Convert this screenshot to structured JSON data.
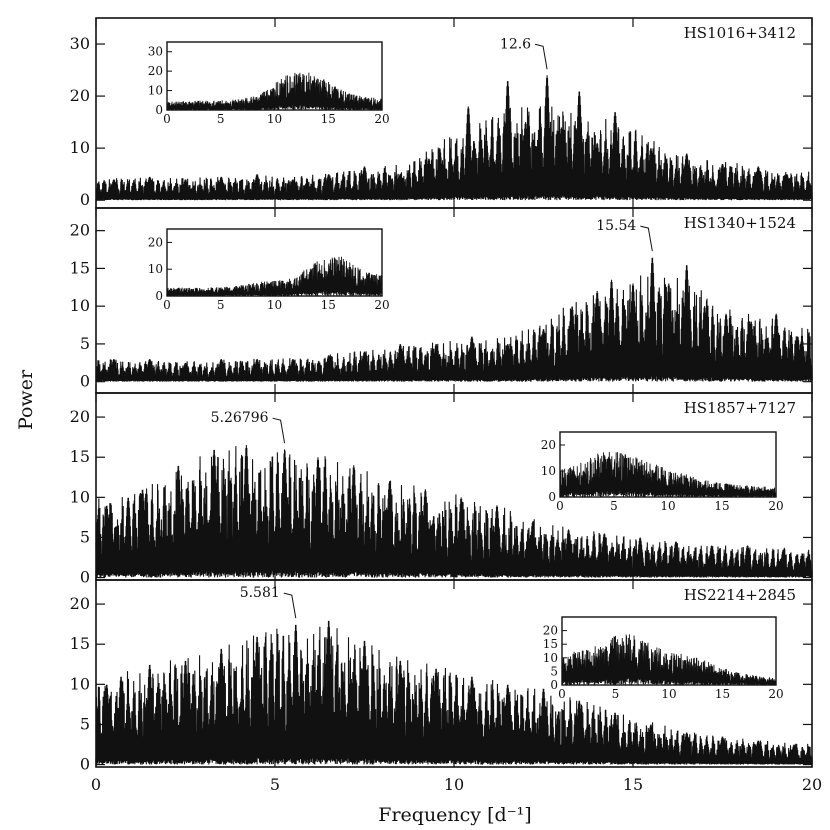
{
  "chart_data": {
    "type": "line",
    "title": "",
    "xlabel": "Frequency [d⁻¹]",
    "ylabel": "Power",
    "xlim": [
      0,
      20
    ],
    "x_ticks": [
      0,
      5,
      10,
      15,
      20
    ],
    "x_tick_labels": [
      "0",
      "5",
      "10",
      "15",
      "20"
    ],
    "grid": false,
    "panels": [
      {
        "name": "HS1016+3412",
        "ylim": [
          -1.5,
          35
        ],
        "y_ticks": [
          0,
          10,
          20,
          30
        ],
        "y_tick_labels": [
          "0",
          "10",
          "20",
          "30"
        ],
        "annotation": {
          "text": "12.6",
          "x": 12.6,
          "y": 24
        },
        "peaks": [
          {
            "x": 0.5,
            "y": 4
          },
          {
            "x": 1.5,
            "y": 4.5
          },
          {
            "x": 2.5,
            "y": 4
          },
          {
            "x": 3.5,
            "y": 4.5
          },
          {
            "x": 4.5,
            "y": 5
          },
          {
            "x": 5.5,
            "y": 4
          },
          {
            "x": 6.5,
            "y": 5
          },
          {
            "x": 7.5,
            "y": 6.5
          },
          {
            "x": 8.5,
            "y": 5
          },
          {
            "x": 9.3,
            "y": 8
          },
          {
            "x": 9.6,
            "y": 10
          },
          {
            "x": 10.4,
            "y": 18
          },
          {
            "x": 10.9,
            "y": 12
          },
          {
            "x": 11.5,
            "y": 23
          },
          {
            "x": 12.0,
            "y": 15
          },
          {
            "x": 12.6,
            "y": 24
          },
          {
            "x": 13.0,
            "y": 14
          },
          {
            "x": 13.5,
            "y": 21
          },
          {
            "x": 14.0,
            "y": 11
          },
          {
            "x": 14.5,
            "y": 17
          },
          {
            "x": 15.5,
            "y": 10
          },
          {
            "x": 16.5,
            "y": 9
          },
          {
            "x": 17.5,
            "y": 7
          },
          {
            "x": 18.5,
            "y": 6.5
          },
          {
            "x": 19.3,
            "y": 5
          }
        ],
        "inset": {
          "position": "top-left",
          "xlim": [
            0,
            20
          ],
          "ylim": [
            0,
            35
          ],
          "x_tick_labels": [
            "0",
            "5",
            "10",
            "15",
            "20"
          ],
          "y_tick_labels": [
            "0",
            "10",
            "20",
            "30"
          ]
        }
      },
      {
        "name": "HS1340+1524",
        "ylim": [
          -1.5,
          23
        ],
        "y_ticks": [
          0,
          5,
          10,
          15,
          20
        ],
        "y_tick_labels": [
          "0",
          "5",
          "10",
          "15",
          "20"
        ],
        "annotation": {
          "text": "15.54",
          "x": 15.54,
          "y": 16.5
        },
        "peaks": [
          {
            "x": 0.5,
            "y": 3
          },
          {
            "x": 1.5,
            "y": 3
          },
          {
            "x": 2.5,
            "y": 2.5
          },
          {
            "x": 3.5,
            "y": 3
          },
          {
            "x": 4.5,
            "y": 3
          },
          {
            "x": 5.5,
            "y": 3
          },
          {
            "x": 6.5,
            "y": 3.5
          },
          {
            "x": 7.5,
            "y": 4
          },
          {
            "x": 8.5,
            "y": 5
          },
          {
            "x": 9.5,
            "y": 5
          },
          {
            "x": 10.5,
            "y": 6
          },
          {
            "x": 11.5,
            "y": 5
          },
          {
            "x": 12.5,
            "y": 7
          },
          {
            "x": 13.3,
            "y": 10
          },
          {
            "x": 14.0,
            "y": 12
          },
          {
            "x": 14.4,
            "y": 13.5
          },
          {
            "x": 15.0,
            "y": 13
          },
          {
            "x": 15.54,
            "y": 16.5
          },
          {
            "x": 16.0,
            "y": 13
          },
          {
            "x": 16.5,
            "y": 15.5
          },
          {
            "x": 17.0,
            "y": 10
          },
          {
            "x": 17.6,
            "y": 9
          },
          {
            "x": 18.3,
            "y": 8
          },
          {
            "x": 19.0,
            "y": 9
          },
          {
            "x": 19.6,
            "y": 6
          }
        ],
        "inset": {
          "position": "top-left",
          "xlim": [
            0,
            20
          ],
          "ylim": [
            0,
            25
          ],
          "x_tick_labels": [
            "0",
            "5",
            "10",
            "15",
            "20"
          ],
          "y_tick_labels": [
            "0",
            "10",
            "20"
          ]
        }
      },
      {
        "name": "HS1857+7127",
        "ylim": [
          -0.3,
          23
        ],
        "y_ticks": [
          0,
          5,
          10,
          15,
          20
        ],
        "y_tick_labels": [
          "0",
          "5",
          "10",
          "15",
          "20"
        ],
        "annotation": {
          "text": "5.26796",
          "x": 5.26796,
          "y": 16
        },
        "peaks": [
          {
            "x": 0.3,
            "y": 9
          },
          {
            "x": 0.9,
            "y": 10
          },
          {
            "x": 1.3,
            "y": 11
          },
          {
            "x": 2.3,
            "y": 14
          },
          {
            "x": 3.3,
            "y": 16
          },
          {
            "x": 4.2,
            "y": 16.5
          },
          {
            "x": 5.27,
            "y": 16
          },
          {
            "x": 6.2,
            "y": 15
          },
          {
            "x": 7.2,
            "y": 14
          },
          {
            "x": 8.2,
            "y": 12
          },
          {
            "x": 9.2,
            "y": 11
          },
          {
            "x": 10.2,
            "y": 10
          },
          {
            "x": 11.2,
            "y": 9
          },
          {
            "x": 12.2,
            "y": 7
          },
          {
            "x": 13.2,
            "y": 6
          },
          {
            "x": 14.2,
            "y": 5.5
          },
          {
            "x": 15.2,
            "y": 5
          },
          {
            "x": 16.2,
            "y": 4.5
          },
          {
            "x": 17.2,
            "y": 4
          },
          {
            "x": 18.2,
            "y": 4
          },
          {
            "x": 19.2,
            "y": 3.5
          }
        ],
        "inset": {
          "position": "right",
          "xlim": [
            0,
            20
          ],
          "ylim": [
            0,
            25
          ],
          "x_tick_labels": [
            "0",
            "5",
            "10",
            "15",
            "20"
          ],
          "y_tick_labels": [
            "0",
            "10",
            "20"
          ]
        }
      },
      {
        "name": "HS2214+2845",
        "ylim": [
          -0.3,
          23
        ],
        "y_ticks": [
          0,
          5,
          10,
          15,
          20
        ],
        "y_tick_labels": [
          "0",
          "5",
          "10",
          "15",
          "20"
        ],
        "annotation": {
          "text": "5.581",
          "x": 5.581,
          "y": 17.5
        },
        "peaks": [
          {
            "x": 0.3,
            "y": 10
          },
          {
            "x": 0.7,
            "y": 11
          },
          {
            "x": 1.5,
            "y": 12.5
          },
          {
            "x": 2.5,
            "y": 13
          },
          {
            "x": 3.5,
            "y": 14.5
          },
          {
            "x": 4.5,
            "y": 16
          },
          {
            "x": 5.58,
            "y": 17.5
          },
          {
            "x": 6.5,
            "y": 18
          },
          {
            "x": 7.5,
            "y": 15.5
          },
          {
            "x": 8.5,
            "y": 13
          },
          {
            "x": 9.5,
            "y": 12
          },
          {
            "x": 10.5,
            "y": 11
          },
          {
            "x": 11.5,
            "y": 10
          },
          {
            "x": 12.5,
            "y": 9.5
          },
          {
            "x": 13.5,
            "y": 8
          },
          {
            "x": 14.5,
            "y": 6.5
          },
          {
            "x": 15.5,
            "y": 5
          },
          {
            "x": 16.5,
            "y": 4
          },
          {
            "x": 17.5,
            "y": 3.5
          },
          {
            "x": 18.5,
            "y": 3
          },
          {
            "x": 19.5,
            "y": 2.5
          }
        ],
        "inset": {
          "position": "right",
          "xlim": [
            0,
            20
          ],
          "ylim": [
            0,
            25
          ],
          "x_tick_labels": [
            "0",
            "5",
            "10",
            "15",
            "20"
          ],
          "y_tick_labels": [
            "0",
            "5",
            "10",
            "15",
            "20"
          ]
        }
      }
    ]
  }
}
